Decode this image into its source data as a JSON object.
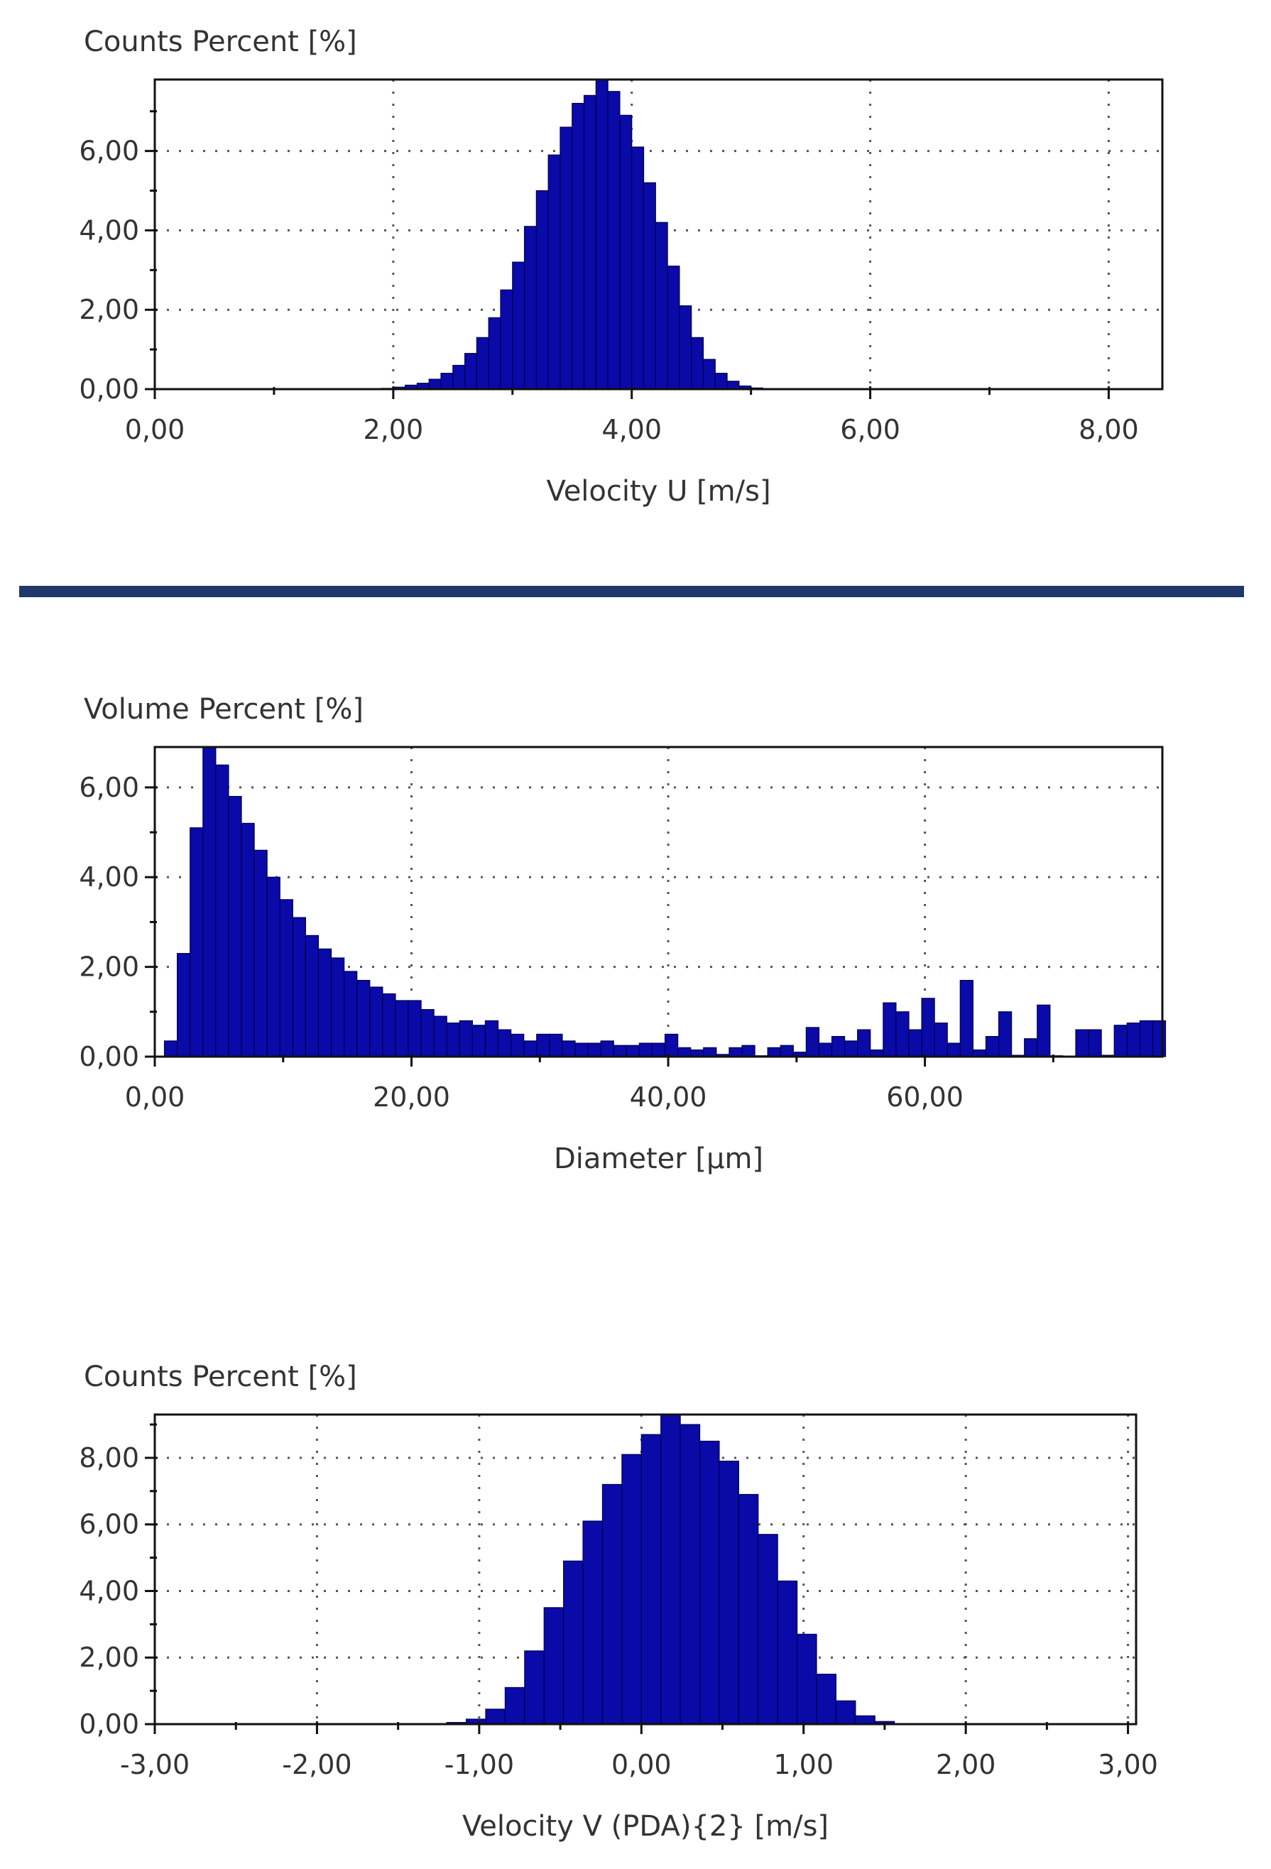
{
  "chart_data": [
    {
      "type": "bar",
      "ylabel": "Counts Percent [%]",
      "xlabel": "Velocity U [m/s]",
      "xlim": [
        0,
        8.45
      ],
      "ylim": [
        0,
        7.8
      ],
      "xticks": [
        0,
        2,
        4,
        6,
        8
      ],
      "xtick_labels": [
        "0,00",
        "2,00",
        "4,00",
        "6,00",
        "8,00"
      ],
      "yticks": [
        0,
        2,
        4,
        6
      ],
      "ytick_labels": [
        "0,00",
        "2,00",
        "4,00",
        "6,00"
      ],
      "grid": true,
      "bin_start": 1.9,
      "bin_width": 0.1,
      "values": [
        0.02,
        0.05,
        0.1,
        0.15,
        0.25,
        0.4,
        0.6,
        0.9,
        1.3,
        1.8,
        2.5,
        3.2,
        4.1,
        5.0,
        5.9,
        6.6,
        7.2,
        7.4,
        7.8,
        7.5,
        6.9,
        6.1,
        5.2,
        4.2,
        3.1,
        2.1,
        1.3,
        0.75,
        0.4,
        0.2,
        0.08,
        0.03
      ]
    },
    {
      "type": "bar",
      "ylabel": "Volume Percent [%]",
      "xlabel": "Diameter [µm]",
      "xlim": [
        0,
        78.5
      ],
      "ylim": [
        0,
        6.9
      ],
      "xticks": [
        0,
        20,
        40,
        60
      ],
      "xtick_labels": [
        "0,00",
        "20,00",
        "40,00",
        "60,00"
      ],
      "yticks": [
        0,
        2,
        4,
        6
      ],
      "ytick_labels": [
        "0,00",
        "2,00",
        "4,00",
        "6,00"
      ],
      "grid": true,
      "bin_start": 0.75,
      "bin_width": 1.0,
      "values": [
        0.35,
        2.3,
        5.1,
        6.9,
        6.5,
        5.8,
        5.2,
        4.6,
        4.0,
        3.5,
        3.1,
        2.7,
        2.4,
        2.2,
        1.9,
        1.7,
        1.55,
        1.4,
        1.25,
        1.25,
        1.05,
        0.9,
        0.75,
        0.8,
        0.7,
        0.8,
        0.6,
        0.5,
        0.35,
        0.5,
        0.5,
        0.35,
        0.3,
        0.3,
        0.35,
        0.25,
        0.25,
        0.3,
        0.3,
        0.5,
        0.2,
        0.15,
        0.2,
        0.05,
        0.2,
        0.25,
        0.02,
        0.2,
        0.25,
        0.1,
        0.65,
        0.3,
        0.45,
        0.35,
        0.6,
        0.15,
        1.2,
        1.0,
        0.6,
        1.3,
        0.75,
        0.3,
        1.7,
        0.15,
        0.45,
        1.0,
        0.03,
        0.4,
        1.15,
        0.02,
        0.01,
        0.6,
        0.6,
        0.03,
        0.7,
        0.75,
        0.8,
        0.8
      ]
    },
    {
      "type": "bar",
      "ylabel": "Counts Percent [%]",
      "xlabel": "Velocity V (PDA){2} [m/s]",
      "xlim": [
        -3.0,
        3.05
      ],
      "ylim": [
        0,
        9.3
      ],
      "xticks": [
        -3,
        -2,
        -1,
        0,
        1,
        2,
        3
      ],
      "xtick_labels": [
        "-3,00",
        "-2,00",
        "-1,00",
        "0,00",
        "1,00",
        "2,00",
        "3,00"
      ],
      "yticks": [
        0,
        2,
        4,
        6,
        8
      ],
      "ytick_labels": [
        "0,00",
        "2,00",
        "4,00",
        "6,00",
        "8,00"
      ],
      "grid": true,
      "bin_start": -1.2,
      "bin_width": 0.12,
      "values": [
        0.05,
        0.15,
        0.45,
        1.1,
        2.2,
        3.5,
        4.9,
        6.1,
        7.2,
        8.1,
        8.7,
        9.3,
        9.0,
        8.5,
        7.9,
        6.9,
        5.7,
        4.3,
        2.7,
        1.5,
        0.7,
        0.25,
        0.08
      ]
    }
  ]
}
